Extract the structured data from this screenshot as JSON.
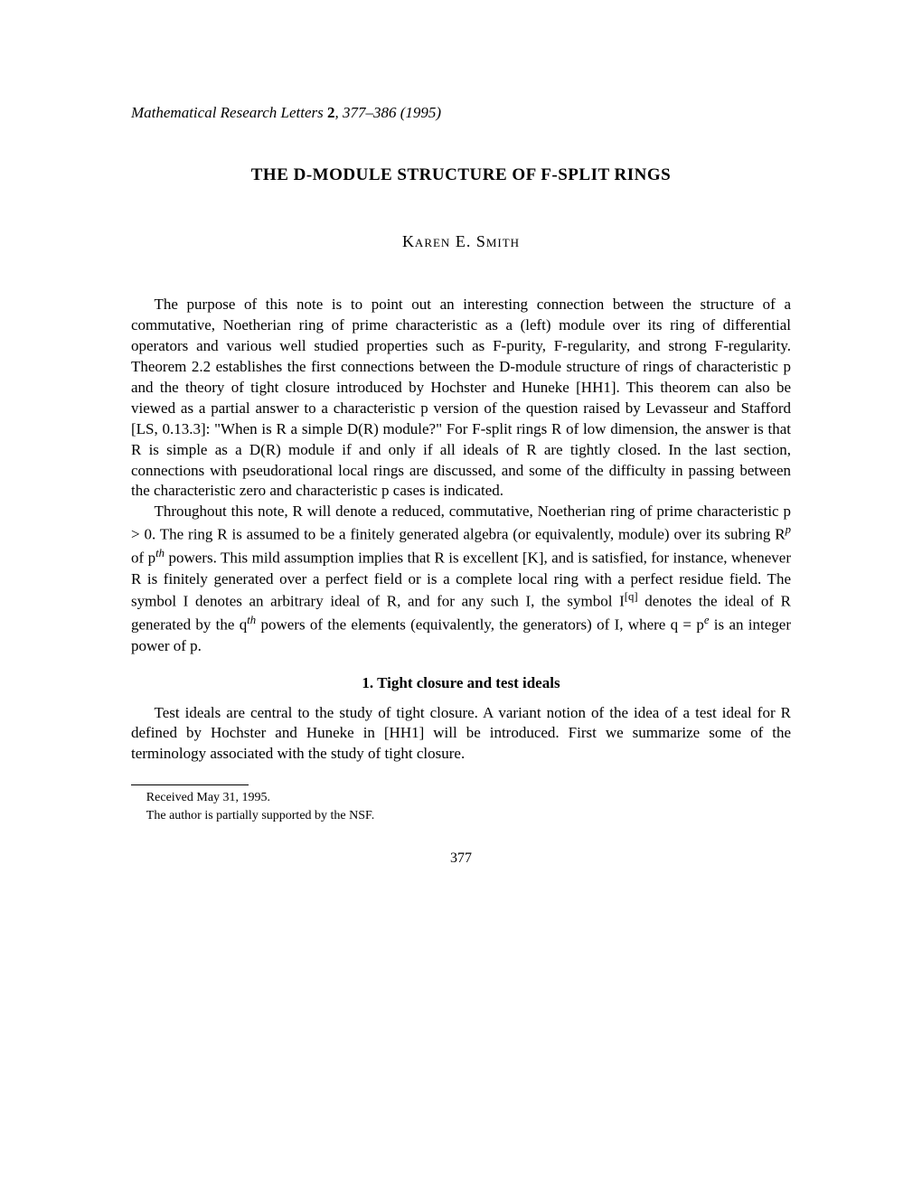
{
  "journal": {
    "name": "Mathematical Research Letters",
    "volume": "2",
    "pages": "377–386",
    "year": "(1995)"
  },
  "title": "THE D-MODULE STRUCTURE OF F-SPLIT RINGS",
  "author": "Karen E. Smith",
  "paragraphs": {
    "p1": "The purpose of this note is to point out an interesting connection between the structure of a commutative, Noetherian ring of prime characteristic as a (left) module over its ring of differential operators and various well studied properties such as F-purity, F-regularity, and strong F-regularity. Theorem 2.2 establishes the first connections between the D-module structure of rings of characteristic p and the theory of tight closure introduced by Hochster and Huneke [HH1]. This theorem can also be viewed as a partial answer to a characteristic p version of the question raised by Levasseur and Stafford [LS, 0.13.3]: \"When is R a simple D(R) module?\" For F-split rings R of low dimension, the answer is that R is simple as a D(R) module if and only if all ideals of R are tightly closed. In the last section, connections with pseudorational local rings are discussed, and some of the difficulty in passing between the characteristic zero and characteristic p cases is indicated.",
    "p2_part1": "Throughout this note, R will denote a reduced, commutative, Noetherian ring of prime characteristic p > 0. The ring R is assumed to be a finitely generated algebra (or equivalently, module) over its subring R",
    "p2_sup1": "p",
    "p2_part2": " of p",
    "p2_sup2": "th",
    "p2_part3": " powers. This mild assumption implies that R is excellent [K], and is satisfied, for instance, whenever R is finitely generated over a perfect field or is a complete local ring with a perfect residue field. The symbol I denotes an arbitrary ideal of R, and for any such I, the symbol I",
    "p2_sup3": "[q]",
    "p2_part4": " denotes the ideal of R generated by the q",
    "p2_sup4": "th",
    "p2_part5": " powers of the elements (equivalently, the generators) of I, where q = p",
    "p2_sup5": "e",
    "p2_part6": " is an integer power of p."
  },
  "section1": {
    "heading": "1. Tight closure and test ideals",
    "p1": "Test ideals are central to the study of tight closure. A variant notion of the idea of a test ideal for R defined by Hochster and Huneke in [HH1] will be introduced. First we summarize some of the terminology associated with the study of tight closure."
  },
  "footnotes": {
    "f1": "Received May 31, 1995.",
    "f2": "The author is partially supported by the NSF."
  },
  "page_number": "377"
}
